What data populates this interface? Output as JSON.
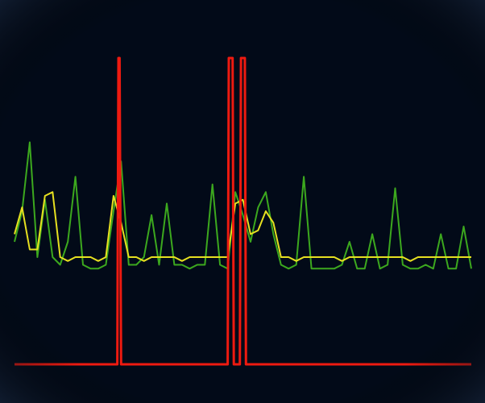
{
  "chart_data": {
    "type": "line",
    "xlim": [
      0,
      120
    ],
    "xticks": [
      8,
      48,
      88
    ],
    "ylim": [
      0,
      8
    ],
    "yticks": [
      1,
      2,
      3,
      4,
      5,
      6,
      7,
      8
    ],
    "grid": true,
    "grid_color": "#1d4f8c",
    "background": "#020a18",
    "x": [
      0,
      2,
      4,
      6,
      8,
      10,
      12,
      14,
      16,
      18,
      20,
      22,
      24,
      26,
      28,
      30,
      32,
      34,
      36,
      38,
      40,
      42,
      44,
      46,
      48,
      50,
      52,
      54,
      56,
      58,
      60,
      62,
      64,
      66,
      68,
      70,
      72,
      74,
      76,
      78,
      80,
      82,
      84,
      86,
      88,
      90,
      92,
      94,
      96,
      98,
      100,
      102,
      104,
      106,
      108,
      110,
      112,
      114,
      116,
      118,
      120
    ],
    "series": [
      {
        "color": "#3ca81e",
        "values": [
          3.2,
          4.0,
          5.8,
          2.8,
          4.3,
          2.8,
          2.6,
          3.2,
          4.9,
          2.6,
          2.5,
          2.5,
          2.6,
          4.0,
          5.3,
          2.6,
          2.6,
          2.8,
          3.9,
          2.6,
          4.2,
          2.6,
          2.6,
          2.5,
          2.6,
          2.6,
          4.7,
          2.6,
          2.5,
          4.5,
          3.9,
          3.2,
          4.1,
          4.5,
          3.4,
          2.6,
          2.5,
          2.6,
          4.9,
          2.5,
          2.5,
          2.5,
          2.5,
          2.6,
          3.2,
          2.5,
          2.5,
          3.4,
          2.5,
          2.6,
          4.6,
          2.6,
          2.5,
          2.5,
          2.6,
          2.5,
          3.4,
          2.5,
          2.5,
          3.6,
          2.5
        ]
      },
      {
        "color": "#e6e020",
        "values": [
          3.4,
          4.1,
          3.0,
          3.0,
          4.4,
          4.5,
          2.8,
          2.7,
          2.8,
          2.8,
          2.8,
          2.7,
          2.8,
          4.4,
          3.7,
          2.8,
          2.8,
          2.7,
          2.8,
          2.8,
          2.8,
          2.8,
          2.7,
          2.8,
          2.8,
          2.8,
          2.8,
          2.8,
          2.8,
          4.2,
          4.3,
          3.4,
          3.5,
          4.0,
          3.7,
          2.8,
          2.8,
          2.7,
          2.8,
          2.8,
          2.8,
          2.8,
          2.8,
          2.7,
          2.8,
          2.8,
          2.8,
          2.8,
          2.8,
          2.8,
          2.8,
          2.8,
          2.7,
          2.8,
          2.8,
          2.8,
          2.8,
          2.8,
          2.8,
          2.8,
          2.8
        ]
      },
      {
        "color": "#ee1a10",
        "x": [
          0,
          27,
          27.3,
          27.6,
          28,
          56,
          56.3,
          57.3,
          57.6,
          59.2,
          59.5,
          60.5,
          60.8,
          120
        ],
        "values": [
          0,
          0,
          8,
          8,
          0,
          0,
          8,
          8,
          0,
          0,
          8,
          8,
          0,
          0
        ]
      }
    ]
  }
}
